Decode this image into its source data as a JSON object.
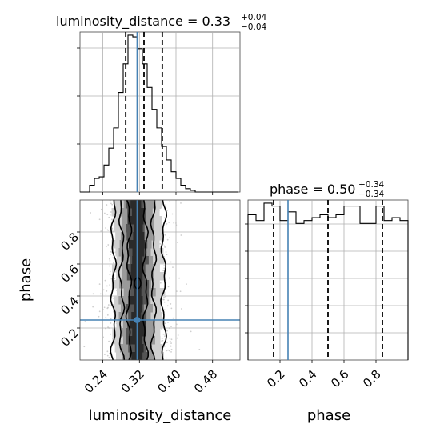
{
  "chart_data": [
    {
      "panel": "luminosity_distance marginal",
      "type": "histogram",
      "title": {
        "param": "luminosity_distance",
        "value": "0.33",
        "plus": "+0.04",
        "minus": "−0.04"
      },
      "xlim": [
        0.19,
        0.54
      ],
      "grid": true,
      "bins_start": 0.19,
      "bin_width": 0.0105,
      "counts": [
        0,
        0,
        4,
        8,
        9,
        16,
        26,
        38,
        59,
        76,
        93,
        92,
        85,
        76,
        62,
        49,
        38,
        27,
        19,
        12,
        8,
        4,
        2,
        1,
        0,
        0,
        0,
        0,
        0,
        0,
        0,
        0,
        0
      ],
      "quantiles": [
        0.29,
        0.33,
        0.37
      ],
      "truth": 0.315
    },
    {
      "panel": "phase vs luminosity_distance",
      "type": "2d-density",
      "xlabel": "luminosity_distance",
      "ylabel": "phase",
      "xlim": [
        0.19,
        0.54
      ],
      "ylim": [
        0.0,
        1.0
      ],
      "x_ticks": [
        "0.24",
        "0.32",
        "0.40",
        "0.48"
      ],
      "x_tick_values": [
        0.24,
        0.32,
        0.4,
        0.48
      ],
      "y_ticks": [
        "0.2",
        "0.4",
        "0.6",
        "0.8"
      ],
      "y_tick_values": [
        0.2,
        0.4,
        0.6,
        0.8
      ],
      "truth": {
        "x": 0.315,
        "y": 0.25
      },
      "scatter_range": {
        "x": [
          0.24,
          0.44
        ],
        "y": [
          0.0,
          1.0
        ]
      },
      "density_range": {
        "x": [
          0.26,
          0.4
        ]
      },
      "contour_bands": [
        {
          "x": [
            0.295,
            0.335
          ],
          "shade": "#555555"
        },
        {
          "x": [
            0.28,
            0.35
          ],
          "shade": "#9a9a9a"
        },
        {
          "x": [
            0.265,
            0.37
          ],
          "shade": "#cfcfcf"
        }
      ],
      "contour_lines": [
        {
          "center": 0.315,
          "halfwidth": 0.018
        },
        {
          "center": 0.316,
          "halfwidth": 0.035
        },
        {
          "center": 0.318,
          "halfwidth": 0.055
        }
      ]
    },
    {
      "panel": "phase marginal",
      "type": "histogram",
      "title": {
        "param": "phase",
        "value": "0.50",
        "plus": "+0.34",
        "minus": "−0.34"
      },
      "xlabel": "phase",
      "xlim": [
        0.0,
        1.0
      ],
      "x_ticks": [
        "0.2",
        "0.4",
        "0.6",
        "0.8"
      ],
      "x_tick_values": [
        0.2,
        0.4,
        0.6,
        0.8
      ],
      "grid": true,
      "bins_start": 0.0,
      "bin_width": 0.05,
      "counts": [
        50,
        48,
        54,
        53,
        48,
        51,
        47,
        48,
        49,
        50,
        49,
        50,
        53,
        53,
        47,
        47,
        53,
        48,
        49,
        48
      ],
      "quantiles": [
        0.16,
        0.5,
        0.84
      ],
      "truth": 0.25
    }
  ],
  "colors": {
    "truth": "#4682b4",
    "hist": "#000000",
    "grid": "#b0b0b0",
    "scatter": "#bbbbbb"
  }
}
